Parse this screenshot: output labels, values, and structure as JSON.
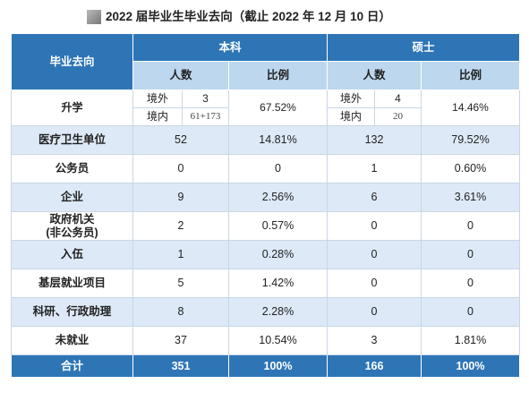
{
  "header": {
    "title": "2022 届毕业生毕业去向（截止 2022 年 12 月 10 日）"
  },
  "table": {
    "group_header": [
      "毕业去向",
      "本科",
      "硕士"
    ],
    "sub_header": [
      "人数",
      "比例",
      "人数",
      "比例"
    ],
    "further_study": {
      "label": "升学",
      "bachelor": {
        "rows": [
          [
            "境外",
            "3"
          ],
          [
            "境内",
            "61+173"
          ]
        ],
        "ratio": "67.52%"
      },
      "master": {
        "rows": [
          [
            "境外",
            "4"
          ],
          [
            "境内",
            "20"
          ]
        ],
        "ratio": "14.46%"
      }
    },
    "rows": [
      [
        "医疗卫生单位",
        "52",
        "14.81%",
        "132",
        "79.52%"
      ],
      [
        "公务员",
        "0",
        "0",
        "1",
        "0.60%"
      ],
      [
        "企业",
        "9",
        "2.56%",
        "6",
        "3.61%"
      ],
      [
        "政府机关\n(非公务员)",
        "2",
        "0.57%",
        "0",
        "0"
      ],
      [
        "入伍",
        "1",
        "0.28%",
        "0",
        "0"
      ],
      [
        "基层就业项目",
        "5",
        "1.42%",
        "0",
        "0"
      ],
      [
        "科研、行政助理",
        "8",
        "2.28%",
        "0",
        "0"
      ],
      [
        "未就业",
        "37",
        "10.54%",
        "3",
        "1.81%"
      ]
    ],
    "total": [
      "合计",
      "351",
      "100%",
      "166",
      "100%"
    ]
  }
}
